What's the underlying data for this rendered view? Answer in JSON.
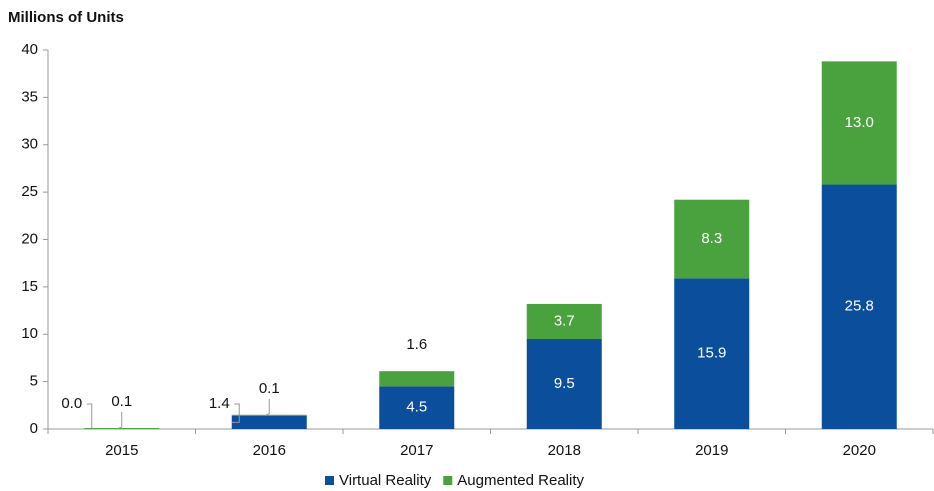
{
  "chart_data": {
    "type": "bar",
    "stacked": true,
    "y_axis_title": "Millions of Units",
    "categories": [
      "2015",
      "2016",
      "2017",
      "2018",
      "2019",
      "2020"
    ],
    "series": [
      {
        "name": "Virtual Reality",
        "color": "#0b4f9c",
        "values": [
          0,
          1.4,
          4.5,
          9.5,
          15.9,
          25.8
        ],
        "value_labels": [
          "0.0",
          "1.4",
          "4.5",
          "9.5",
          "15.9",
          "25.8"
        ]
      },
      {
        "name": "Augmented Reality",
        "color": "#4aa23f",
        "values": [
          0.1,
          0.1,
          1.6,
          3.7,
          8.3,
          13
        ],
        "value_labels": [
          "0.1",
          "0.1",
          "1.6",
          "3.7",
          "8.3",
          "13.0"
        ]
      }
    ],
    "ylim": [
      0,
      40
    ],
    "yticks": [
      0,
      5,
      10,
      15,
      20,
      25,
      30,
      35,
      40
    ],
    "grid": false,
    "legend": "bottom"
  }
}
